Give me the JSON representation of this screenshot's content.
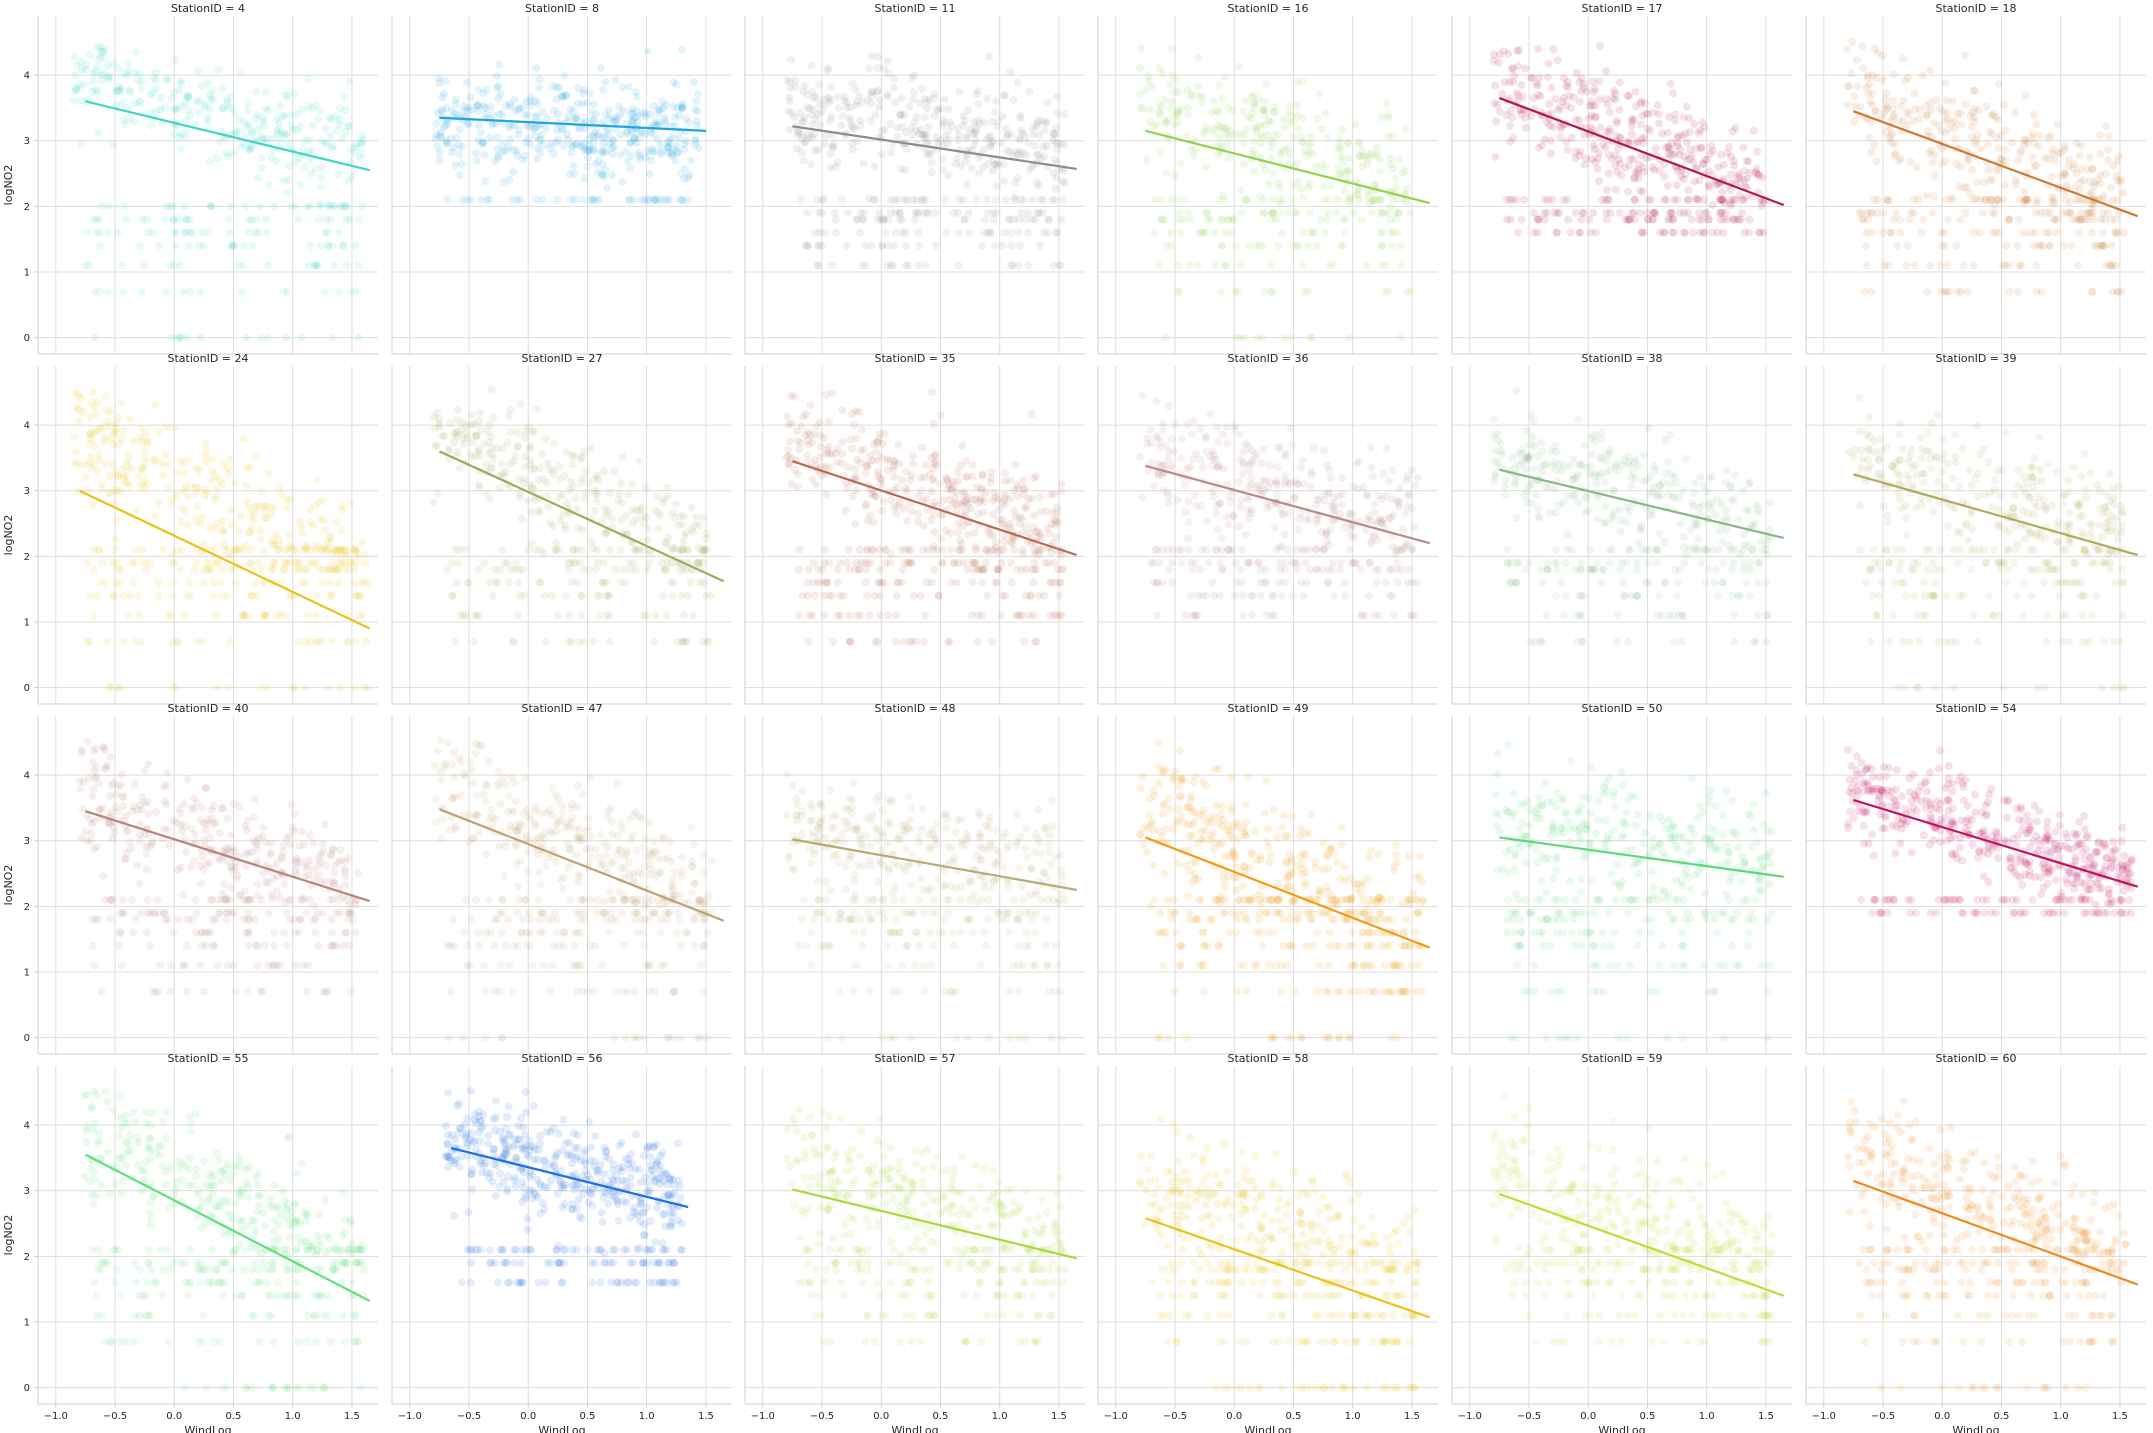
{
  "chart_data": {
    "type": "scatter",
    "title": "",
    "xlabel": "WindLog",
    "ylabel": "logNO2",
    "xlim": [
      -1.15,
      1.72
    ],
    "ylim": [
      -0.25,
      4.9
    ],
    "xticks": [
      -1.0,
      -0.5,
      0.0,
      0.5,
      1.0,
      1.5
    ],
    "yticks": [
      0,
      1,
      2,
      3,
      4
    ],
    "xtick_labels": [
      "−1.0",
      "−0.5",
      "0.0",
      "0.5",
      "1.0",
      "1.5"
    ],
    "ytick_labels": [
      "0",
      "1",
      "2",
      "3",
      "4"
    ],
    "grid": true,
    "layout": {
      "rows": 4,
      "cols": 6
    },
    "panels": [
      {
        "title": "StationID = 4",
        "color": "#41d6c3",
        "line": {
          "x": [
            -0.75,
            1.65
          ],
          "y": [
            3.6,
            2.55
          ]
        },
        "scatter": {
          "x_range": [
            -0.85,
            1.6
          ],
          "y_center": 3.4,
          "y_spread": 0.7,
          "floor_levels": [
            2.0,
            1.8,
            1.6,
            1.4,
            1.1,
            0.7,
            0.0
          ],
          "density": 0.9
        }
      },
      {
        "title": "StationID = 8",
        "color": "#1fa4e0",
        "line": {
          "x": [
            -0.75,
            1.5
          ],
          "y": [
            3.35,
            3.15
          ]
        },
        "scatter": {
          "x_range": [
            -0.8,
            1.45
          ],
          "y_center": 3.2,
          "y_spread": 0.7,
          "floor_levels": [
            2.1
          ],
          "density": 1.3
        }
      },
      {
        "title": "StationID = 11",
        "color": "#8c8c8c",
        "line": {
          "x": [
            -0.75,
            1.65
          ],
          "y": [
            3.22,
            2.57
          ]
        },
        "scatter": {
          "x_range": [
            -0.8,
            1.55
          ],
          "y_center": 3.2,
          "y_spread": 0.7,
          "floor_levels": [
            2.1,
            1.9,
            1.8,
            1.6,
            1.4,
            1.1
          ],
          "density": 1.1
        }
      },
      {
        "title": "StationID = 16",
        "color": "#8ed44a",
        "line": {
          "x": [
            -0.75,
            1.65
          ],
          "y": [
            3.15,
            2.05
          ]
        },
        "scatter": {
          "x_range": [
            -0.8,
            1.5
          ],
          "y_center": 3.0,
          "y_spread": 0.8,
          "floor_levels": [
            2.1,
            1.9,
            1.8,
            1.6,
            1.4,
            1.1,
            0.7,
            0.0
          ],
          "density": 0.9
        }
      },
      {
        "title": "StationID = 17",
        "color": "#b0184a",
        "line": {
          "x": [
            -0.75,
            1.65
          ],
          "y": [
            3.65,
            2.02
          ]
        },
        "scatter": {
          "x_range": [
            -0.8,
            1.5
          ],
          "y_center": 3.0,
          "y_spread": 0.8,
          "floor_levels": [
            2.1,
            1.9,
            1.8,
            1.6
          ],
          "density": 1.2
        }
      },
      {
        "title": "StationID = 18",
        "color": "#cc7a34",
        "line": {
          "x": [
            -0.75,
            1.65
          ],
          "y": [
            3.45,
            1.85
          ]
        },
        "scatter": {
          "x_range": [
            -0.8,
            1.55
          ],
          "y_center": 2.9,
          "y_spread": 0.8,
          "floor_levels": [
            2.1,
            1.9,
            1.8,
            1.6,
            1.4,
            1.1,
            0.7
          ],
          "density": 1.0
        }
      },
      {
        "title": "StationID = 24",
        "color": "#e8c21a",
        "line": {
          "x": [
            -0.8,
            1.65
          ],
          "y": [
            3.0,
            0.9
          ]
        },
        "scatter": {
          "x_range": [
            -0.85,
            1.65
          ],
          "y_center": 2.7,
          "y_spread": 0.9,
          "floor_levels": [
            2.1,
            1.9,
            1.8,
            1.6,
            1.4,
            1.1,
            0.7,
            0.0
          ],
          "density": 1.0
        }
      },
      {
        "title": "StationID = 27",
        "color": "#9aac5a",
        "line": {
          "x": [
            -0.75,
            1.65
          ],
          "y": [
            3.6,
            1.62
          ]
        },
        "scatter": {
          "x_range": [
            -0.8,
            1.55
          ],
          "y_center": 3.0,
          "y_spread": 0.8,
          "floor_levels": [
            2.1,
            1.9,
            1.8,
            1.6,
            1.4,
            1.1,
            0.7
          ],
          "density": 0.9
        }
      },
      {
        "title": "StationID = 35",
        "color": "#b86a52",
        "line": {
          "x": [
            -0.75,
            1.65
          ],
          "y": [
            3.45,
            2.02
          ]
        },
        "scatter": {
          "x_range": [
            -0.8,
            1.55
          ],
          "y_center": 3.0,
          "y_spread": 0.75,
          "floor_levels": [
            2.1,
            1.9,
            1.8,
            1.6,
            1.4,
            1.1,
            0.7
          ],
          "density": 1.2
        }
      },
      {
        "title": "StationID = 36",
        "color": "#b88a8a",
        "line": {
          "x": [
            -0.75,
            1.65
          ],
          "y": [
            3.38,
            2.2
          ]
        },
        "scatter": {
          "x_range": [
            -0.8,
            1.55
          ],
          "y_center": 3.0,
          "y_spread": 0.75,
          "floor_levels": [
            2.1,
            1.9,
            1.8,
            1.6,
            1.4,
            1.1
          ],
          "density": 1.0
        }
      },
      {
        "title": "StationID = 38",
        "color": "#86b883",
        "line": {
          "x": [
            -0.75,
            1.65
          ],
          "y": [
            3.32,
            2.28
          ]
        },
        "scatter": {
          "x_range": [
            -0.8,
            1.55
          ],
          "y_center": 3.0,
          "y_spread": 0.75,
          "floor_levels": [
            2.1,
            1.9,
            1.8,
            1.6,
            1.4,
            1.1,
            0.7
          ],
          "density": 0.9
        }
      },
      {
        "title": "StationID = 39",
        "color": "#b1aa5c",
        "line": {
          "x": [
            -0.75,
            1.65
          ],
          "y": [
            3.25,
            2.02
          ]
        },
        "scatter": {
          "x_range": [
            -0.8,
            1.55
          ],
          "y_center": 3.0,
          "y_spread": 0.75,
          "floor_levels": [
            2.1,
            1.9,
            1.8,
            1.6,
            1.4,
            1.1,
            0.7,
            0.0
          ],
          "density": 0.9
        }
      },
      {
        "title": "StationID = 40",
        "color": "#b8857a",
        "line": {
          "x": [
            -0.75,
            1.65
          ],
          "y": [
            3.45,
            2.08
          ]
        },
        "scatter": {
          "x_range": [
            -0.8,
            1.55
          ],
          "y_center": 3.0,
          "y_spread": 0.75,
          "floor_levels": [
            2.1,
            1.9,
            1.8,
            1.6,
            1.4,
            1.1,
            0.7
          ],
          "density": 1.0
        }
      },
      {
        "title": "StationID = 47",
        "color": "#bfa072",
        "line": {
          "x": [
            -0.75,
            1.65
          ],
          "y": [
            3.48,
            1.78
          ]
        },
        "scatter": {
          "x_range": [
            -0.8,
            1.55
          ],
          "y_center": 3.0,
          "y_spread": 0.8,
          "floor_levels": [
            2.1,
            1.9,
            1.8,
            1.6,
            1.4,
            1.1,
            0.7,
            0.0
          ],
          "density": 1.0
        }
      },
      {
        "title": "StationID = 48",
        "color": "#b6aa72",
        "line": {
          "x": [
            -0.75,
            1.65
          ],
          "y": [
            3.02,
            2.25
          ]
        },
        "scatter": {
          "x_range": [
            -0.8,
            1.55
          ],
          "y_center": 2.9,
          "y_spread": 0.8,
          "floor_levels": [
            2.1,
            1.9,
            1.8,
            1.6,
            1.4,
            1.1,
            0.7,
            0.0
          ],
          "density": 0.9
        }
      },
      {
        "title": "StationID = 49",
        "color": "#f29a12",
        "line": {
          "x": [
            -0.75,
            1.65
          ],
          "y": [
            3.05,
            1.37
          ]
        },
        "scatter": {
          "x_range": [
            -0.8,
            1.6
          ],
          "y_center": 2.6,
          "y_spread": 0.9,
          "floor_levels": [
            2.1,
            1.9,
            1.8,
            1.6,
            1.4,
            1.1,
            0.7,
            0.0
          ],
          "density": 1.1
        }
      },
      {
        "title": "StationID = 50",
        "color": "#5ad87e",
        "line": {
          "x": [
            -0.75,
            1.65
          ],
          "y": [
            3.05,
            2.45
          ]
        },
        "scatter": {
          "x_range": [
            -0.8,
            1.55
          ],
          "y_center": 3.0,
          "y_spread": 0.8,
          "floor_levels": [
            2.1,
            1.9,
            1.8,
            1.6,
            1.4,
            1.1,
            0.7,
            0.0
          ],
          "density": 0.9
        }
      },
      {
        "title": "StationID = 54",
        "color": "#c2125e",
        "line": {
          "x": [
            -0.75,
            1.65
          ],
          "y": [
            3.62,
            2.3
          ]
        },
        "scatter": {
          "x_range": [
            -0.8,
            1.6
          ],
          "y_center": 3.1,
          "y_spread": 0.65,
          "floor_levels": [
            2.1,
            1.9
          ],
          "density": 1.4
        }
      },
      {
        "title": "StationID = 55",
        "color": "#5fe07c",
        "line": {
          "x": [
            -0.75,
            1.65
          ],
          "y": [
            3.55,
            1.32
          ]
        },
        "scatter": {
          "x_range": [
            -0.8,
            1.6
          ],
          "y_center": 2.9,
          "y_spread": 0.9,
          "floor_levels": [
            2.1,
            1.9,
            1.8,
            1.6,
            1.4,
            1.1,
            0.7,
            0.0
          ],
          "density": 1.0
        }
      },
      {
        "title": "StationID = 56",
        "color": "#1d6fe3",
        "line": {
          "x": [
            -0.65,
            1.35
          ],
          "y": [
            3.65,
            2.75
          ]
        },
        "scatter": {
          "x_range": [
            -0.7,
            1.3
          ],
          "y_center": 3.3,
          "y_spread": 0.75,
          "floor_levels": [
            2.1,
            1.9,
            1.6
          ],
          "density": 1.3
        }
      },
      {
        "title": "StationID = 57",
        "color": "#a8d83a",
        "line": {
          "x": [
            -0.75,
            1.65
          ],
          "y": [
            3.02,
            1.97
          ]
        },
        "scatter": {
          "x_range": [
            -0.8,
            1.55
          ],
          "y_center": 2.8,
          "y_spread": 0.85,
          "floor_levels": [
            2.1,
            1.9,
            1.8,
            1.6,
            1.4,
            1.1,
            0.7
          ],
          "density": 0.9
        }
      },
      {
        "title": "StationID = 58",
        "color": "#e9c21a",
        "line": {
          "x": [
            -0.75,
            1.65
          ],
          "y": [
            2.58,
            1.07
          ]
        },
        "scatter": {
          "x_range": [
            -0.8,
            1.55
          ],
          "y_center": 2.4,
          "y_spread": 0.9,
          "floor_levels": [
            1.9,
            1.8,
            1.6,
            1.4,
            1.1,
            0.7,
            0.0
          ],
          "density": 1.0
        }
      },
      {
        "title": "StationID = 59",
        "color": "#c6d83a",
        "line": {
          "x": [
            -0.75,
            1.65
          ],
          "y": [
            2.95,
            1.4
          ]
        },
        "scatter": {
          "x_range": [
            -0.8,
            1.55
          ],
          "y_center": 2.6,
          "y_spread": 0.9,
          "floor_levels": [
            2.1,
            1.9,
            1.8,
            1.6,
            1.4,
            1.1,
            0.7
          ],
          "density": 0.9
        }
      },
      {
        "title": "StationID = 60",
        "color": "#ec8a22",
        "line": {
          "x": [
            -0.75,
            1.65
          ],
          "y": [
            3.15,
            1.57
          ]
        },
        "scatter": {
          "x_range": [
            -0.8,
            1.55
          ],
          "y_center": 2.8,
          "y_spread": 0.8,
          "floor_levels": [
            2.1,
            1.9,
            1.8,
            1.6,
            1.4,
            1.1,
            0.7,
            0.0
          ],
          "density": 1.0
        }
      }
    ]
  }
}
